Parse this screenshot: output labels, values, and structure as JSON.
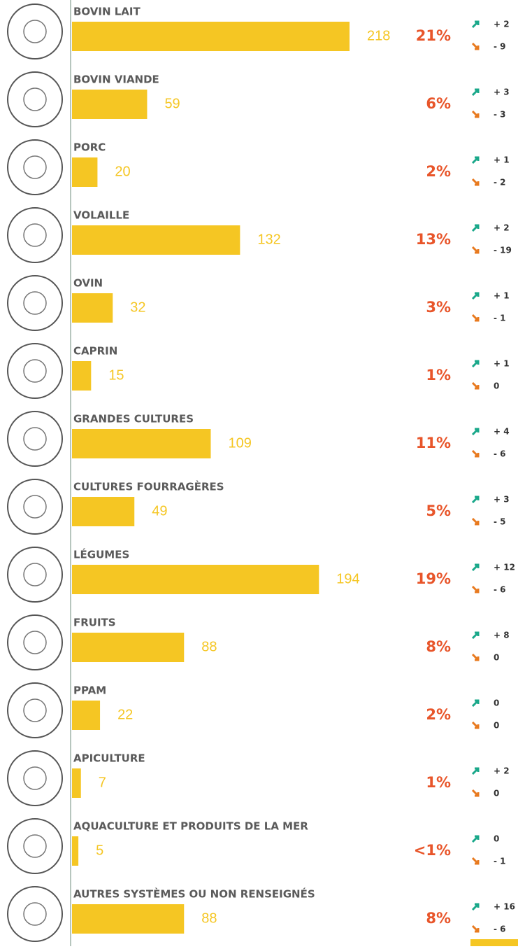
{
  "chart_data": {
    "type": "bar",
    "categories": [
      "BOVIN LAIT",
      "BOVIN VIANDE",
      "PORC",
      "VOLAILLE",
      "OVIN",
      "CAPRIN",
      "GRANDES CULTURES",
      "CULTURES FOURRAGÈRES",
      "LÉGUMES",
      "FRUITS",
      "PPAM",
      "APICULTURE",
      "AQUACULTURE ET PRODUITS DE LA MER",
      "AUTRES SYSTÈMES OU NON RENSEIGNÉS"
    ],
    "values": [
      218,
      59,
      20,
      132,
      32,
      15,
      109,
      49,
      194,
      88,
      22,
      7,
      5,
      88
    ],
    "color": "#f5c623",
    "shares": [
      "21%",
      "6%",
      "2%",
      "13%",
      "3%",
      "1%",
      "11%",
      "5%",
      "19%",
      "8%",
      "2%",
      "1%",
      "<1%",
      "8%"
    ],
    "ups": [
      "+ 2",
      "+ 3",
      "+ 1",
      "+ 2",
      "+ 1",
      "+ 1",
      "+ 4",
      "+ 3",
      "+ 12",
      "+ 8",
      "0",
      "+ 2",
      "0",
      "+ 16"
    ],
    "downs": [
      "- 9",
      "- 3",
      "- 2",
      "- 19",
      "- 1",
      "0",
      "- 6",
      "- 5",
      "- 6",
      "0",
      "0",
      "0",
      "- 1",
      "- 6"
    ]
  }
}
